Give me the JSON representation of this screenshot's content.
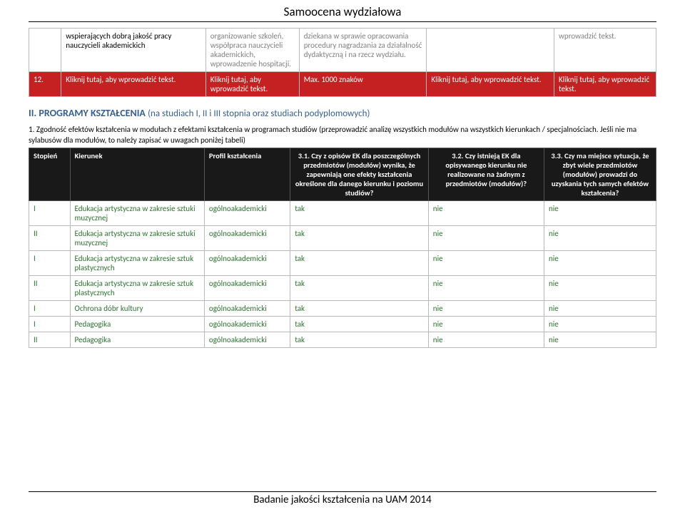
{
  "page": {
    "title": "Samoocena wydziałowa",
    "footer": "Badanie jakości kształcenia na UAM 2014"
  },
  "table1": {
    "rows": [
      {
        "c1": "",
        "c2": "wspierających dobrą jakość pracy nauczycieli akademickich",
        "c3": "organizowanie szkoleń, współpraca nauczycieli akademickich, wprowadzenie hospitacji.",
        "c4": "dziekana w sprawie opracowania procedury nagradzania za działalność dydaktyczną i na rzecz wydziału.",
        "c5": "",
        "c6": "wprowadzić tekst."
      },
      {
        "c1": "12.",
        "c2": "Kliknij tutaj, aby wprowadzić tekst.",
        "c3": "Kliknij tutaj, aby wprowadzić tekst.",
        "c4": "Max. 1000 znaków",
        "c5": "Kliknij tutaj, aby wprowadzić tekst.",
        "c6": "Kliknij tutaj, aby wprowadzić tekst."
      }
    ]
  },
  "section2": {
    "heading_prefix": "II. PROGRAMY KSZTAŁCENIA ",
    "heading_paren": "(na studiach I, II i III stopnia oraz studiach podyplomowych)",
    "para": "1. Zgodność efektów kształcenia w modułach z efektami kształcenia w programach studiów (przeprowadzić analizę wszystkich modułów na wszystkich kierunkach / specjalnościach. Jeśli nie ma sylabusów dla modułów, to należy zapisać w uwagach poniżej tabeli)"
  },
  "table2": {
    "headers": {
      "h1": "Stopień",
      "h2": "Kierunek",
      "h3": "Profil kształcenia",
      "h4": "3.1. Czy z opisów EK dla poszczególnych przedmiotów (modułów) wynika, że zapewniają one efekty kształcenia określone dla danego kierunku i poziomu studiów?",
      "h5": "3.2. Czy istnieją EK dla opisywanego kierunku nie realizowane na żadnym z przedmiotów (modułów)?",
      "h6": "3.3. Czy ma miejsce sytuacja, że zbyt wiele przedmiotów (modułów) prowadzi do uzyskania tych samych efektów kształcenia?"
    },
    "rows": [
      {
        "s": "I",
        "k": "Edukacja artystyczna w zakresie sztuki muzycznej",
        "p": "ogólnoakademicki",
        "q1": "tak",
        "q2": "nie",
        "q3": "nie"
      },
      {
        "s": "II",
        "k": "Edukacja artystyczna w zakresie sztuki muzycznej",
        "p": "ogólnoakademicki",
        "q1": "tak",
        "q2": "nie",
        "q3": "nie"
      },
      {
        "s": "I",
        "k": "Edukacja artystyczna w zakresie sztuk plastycznych",
        "p": "ogólnoakademicki",
        "q1": "tak",
        "q2": "nie",
        "q3": "nie"
      },
      {
        "s": "II",
        "k": "Edukacja artystyczna w zakresie sztuk plastycznych",
        "p": "ogólnoakademicki",
        "q1": "tak",
        "q2": "nie",
        "q3": "nie"
      },
      {
        "s": "I",
        "k": "Ochrona dóbr kultury",
        "p": "ogólnoakademicki",
        "q1": "tak",
        "q2": "nie",
        "q3": "nie"
      },
      {
        "s": "I",
        "k": "Pedagogika",
        "p": "ogólnoakademicki",
        "q1": "tak",
        "q2": "nie",
        "q3": "nie"
      },
      {
        "s": "II",
        "k": "Pedagogika",
        "p": "ogólnoakademicki",
        "q1": "tak",
        "q2": "nie",
        "q3": "nie"
      }
    ]
  },
  "colors": {
    "grey_text": "#808080",
    "red_bg": "#c62122",
    "heading_blue": "#365f91",
    "data_green": "#2c7230",
    "header_bg": "#191919"
  }
}
